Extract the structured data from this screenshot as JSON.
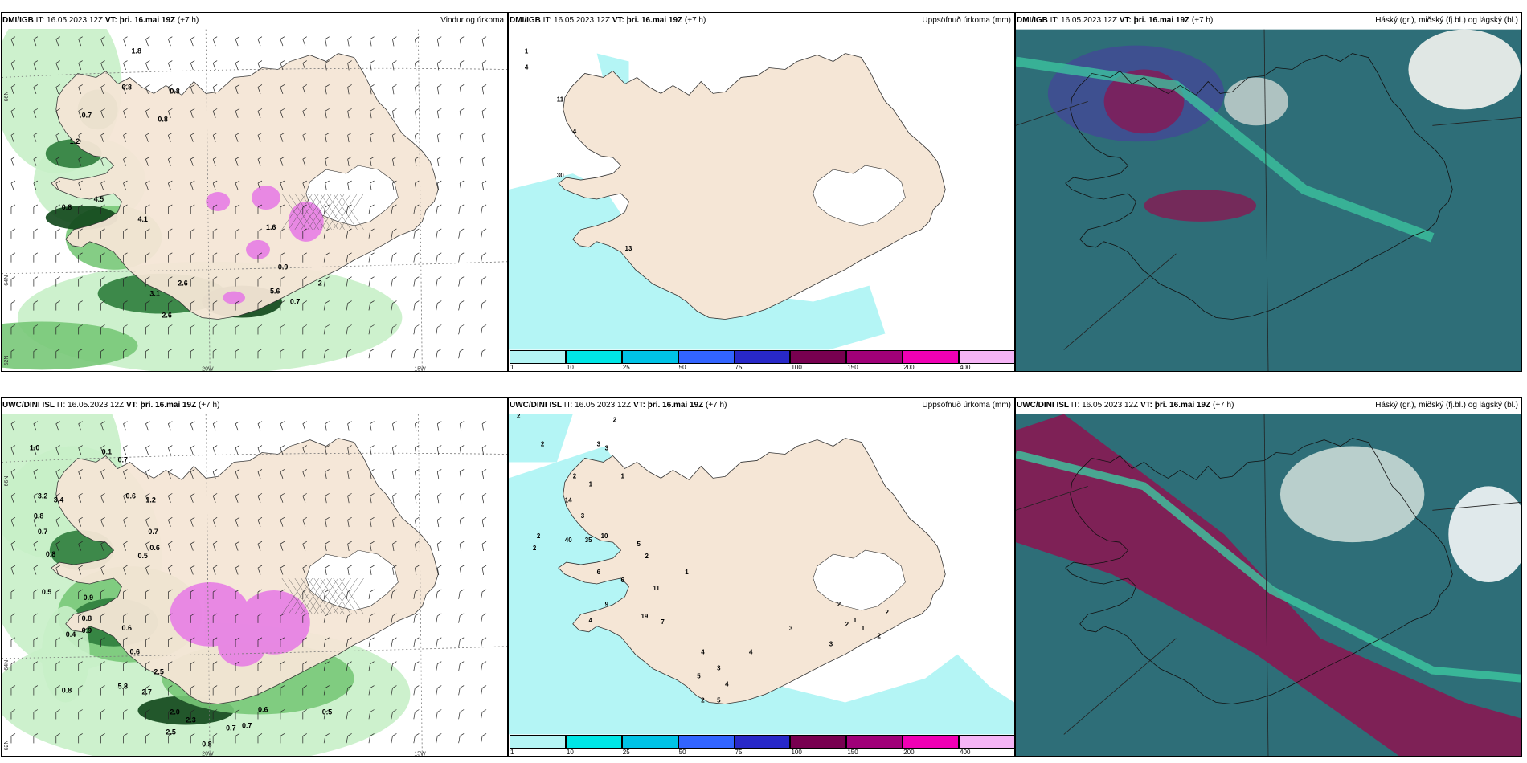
{
  "panels": [
    {
      "id": "p0",
      "model": "DMI/IGB",
      "it": "IT: 16.05.2023 12Z",
      "vt_label": "VT:",
      "vt": "þri. 16.mai 19Z",
      "lead": "(+7 h)",
      "right": "Vindur og úrkoma",
      "kind": "wind"
    },
    {
      "id": "p1",
      "model": "DMI/IGB",
      "it": "IT: 16.05.2023 12Z",
      "vt_label": "VT:",
      "vt": "þri. 16.mai 19Z",
      "lead": "(+7 h)",
      "right": "Uppsöfnuð úrkoma (mm)",
      "kind": "accum"
    },
    {
      "id": "p2",
      "model": "DMI/IGB",
      "it": "IT: 16.05.2023 12Z",
      "vt_label": "VT:",
      "vt": "þri. 16.mai 19Z",
      "lead": "(+7 h)",
      "right": "Háský (gr.), miðský (fj.bl.) og lágský (bl.)",
      "kind": "cloud"
    },
    {
      "id": "p3",
      "model": "UWC/DINI ISL",
      "it": "IT: 16.05.2023 12Z",
      "vt_label": "VT:",
      "vt": "þri. 16.mai 19Z",
      "lead": "(+7 h)",
      "right": "",
      "kind": "wind"
    },
    {
      "id": "p4",
      "model": "UWC/DINI ISL",
      "it": "IT: 16.05.2023 12Z",
      "vt_label": "VT:",
      "vt": "þri. 16.mai 19Z",
      "lead": "(+7 h)",
      "right": "Uppsöfnuð úrkoma (mm)",
      "kind": "accum"
    },
    {
      "id": "p5",
      "model": "UWC/DINI ISL",
      "it": "IT: 16.05.2023 12Z",
      "vt_label": "VT:",
      "vt": "þri. 16.mai 19Z",
      "lead": "(+7 h)",
      "right": "Háský (gr.), miðský (fj.bl.) og lágský (bl.)",
      "kind": "cloud"
    }
  ],
  "grid_labels": {
    "lat66": "66N",
    "lat64": "64N",
    "lat62": "62N",
    "lon20": "20W",
    "lon15": "15W"
  },
  "colorbar": {
    "colors": [
      "#b4f5f5",
      "#00e6e6",
      "#00c3e6",
      "#3264ff",
      "#2828c8",
      "#780050",
      "#a00078",
      "#f000b4",
      "#f5b4f5"
    ],
    "ticks": [
      "1",
      "10",
      "25",
      "50",
      "75",
      "100",
      "150",
      "200",
      "400"
    ]
  },
  "colors": {
    "land": "#f5e6d6",
    "glacier": "#ffffff",
    "sea": "#ffffff",
    "precip_light": "#b4f5f5",
    "green1": "#c8f0c8",
    "green2": "#78c878",
    "green3": "#2d7d3c",
    "green4": "#0f4619",
    "pink": "#e678e6",
    "cloud_teal": "#2e6e78",
    "cloud_green": "#3cc8a0",
    "cloud_red": "#8c1450"
  },
  "wind_labels": {
    "p0": [
      "1.8",
      "0.8",
      "0.8",
      "0.7",
      "0.8",
      "1.2",
      "0.8",
      "4.5",
      "4.1",
      "2.6",
      "3.1",
      "5.6",
      "0.7",
      "2.6",
      "0.9",
      "2",
      "1.6"
    ],
    "p3": [
      "1.0",
      "0.1",
      "0.7",
      "0.6",
      "3.2",
      "3.4",
      "0.8",
      "0.7",
      "0.8",
      "0.5",
      "1.2",
      "0.7",
      "0.6",
      "0.5",
      "0.9",
      "0.8",
      "0.9",
      "0.4",
      "0.6",
      "0.6",
      "5.8",
      "2.7",
      "2.5",
      "2.0",
      "2.5",
      "2.3",
      "0.7",
      "0.8",
      "0.7",
      "0.6",
      "0.5",
      "0.8"
    ]
  },
  "accum_labels": {
    "p1": [
      "1",
      "4",
      "11",
      "4",
      "30",
      "13"
    ],
    "p4": [
      "2",
      "2",
      "2",
      "3",
      "3",
      "2",
      "1",
      "1",
      "14",
      "3",
      "2",
      "40",
      "35",
      "10",
      "5",
      "2",
      "11",
      "9",
      "6",
      "6",
      "2",
      "4",
      "1",
      "19",
      "7",
      "4",
      "4",
      "3",
      "3",
      "2",
      "2",
      "1",
      "1",
      "2",
      "2",
      "2",
      "5",
      "5",
      "4",
      "3"
    ]
  }
}
